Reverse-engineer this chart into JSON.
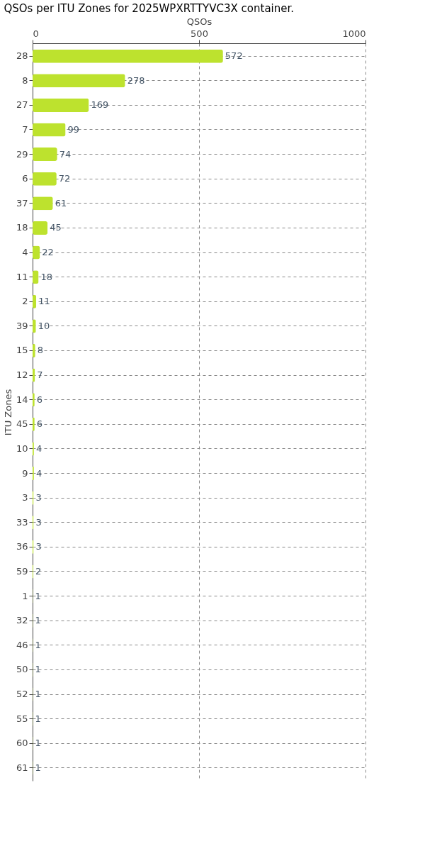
{
  "chart_data": {
    "type": "bar",
    "orientation": "horizontal",
    "title": "QSOs per ITU Zones for 2025WPXRTTYVC3X container.",
    "xlabel": "QSOs",
    "ylabel": "ITU Zones",
    "categories": [
      "28",
      "8",
      "27",
      "7",
      "29",
      "6",
      "37",
      "18",
      "4",
      "11",
      "2",
      "39",
      "15",
      "12",
      "14",
      "45",
      "10",
      "9",
      "3",
      "33",
      "36",
      "59",
      "1",
      "32",
      "46",
      "50",
      "52",
      "55",
      "60",
      "61"
    ],
    "values": [
      572,
      278,
      169,
      99,
      74,
      72,
      61,
      45,
      22,
      18,
      11,
      10,
      8,
      7,
      6,
      6,
      4,
      4,
      3,
      3,
      3,
      2,
      1,
      1,
      1,
      1,
      1,
      1,
      1,
      1
    ],
    "color": "#bde22e",
    "xlim": [
      0,
      1000
    ],
    "xticks": [
      0,
      500,
      1000
    ],
    "grid": true,
    "data_labels": true
  }
}
